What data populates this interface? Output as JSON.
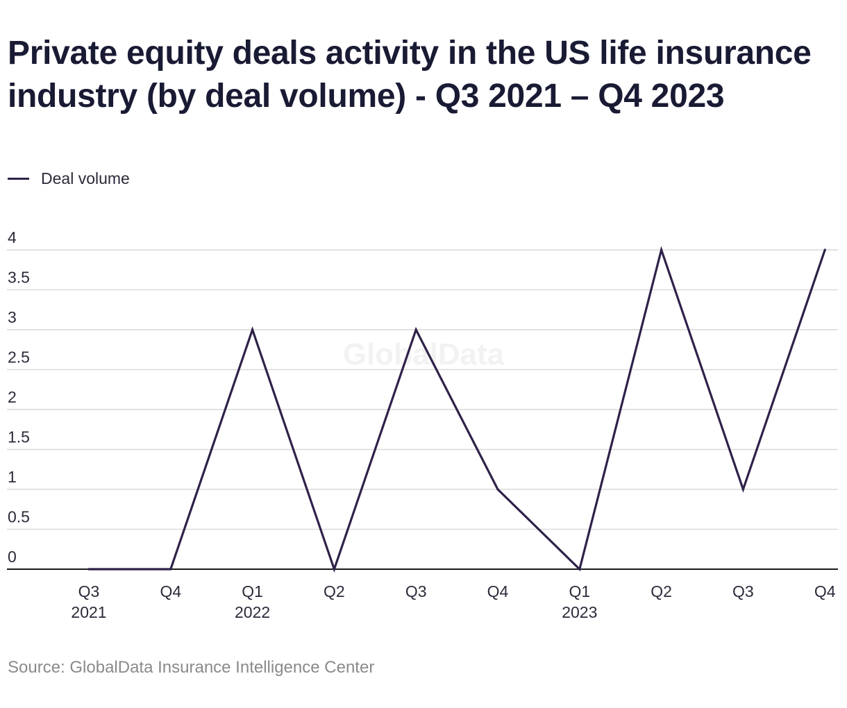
{
  "title": "Private equity deals activity in the US life insurance industry (by deal volume) - Q3 2021 – Q4 2023",
  "source": "Source: GlobalData Insurance Intelligence Center",
  "watermark": "GlobalData",
  "colors": {
    "line": "#2f2249",
    "grid": "#d9d9d9",
    "axis": "#1a1a1a",
    "tick_text": "#2a2a3a",
    "source_text": "#8a8a8a"
  },
  "chart_data": {
    "type": "line",
    "title": "Private equity deals activity in the US life insurance industry (by deal volume) - Q3 2021 – Q4 2023",
    "categories": [
      [
        "Q3",
        "2021"
      ],
      [
        "Q4",
        ""
      ],
      [
        "Q1",
        "2022"
      ],
      [
        "Q2",
        ""
      ],
      [
        "Q3",
        ""
      ],
      [
        "Q4",
        ""
      ],
      [
        "Q1",
        "2023"
      ],
      [
        "Q2",
        ""
      ],
      [
        "Q3",
        ""
      ],
      [
        "Q4",
        ""
      ]
    ],
    "series": [
      {
        "name": "Deal volume",
        "values": [
          0,
          0,
          3,
          0,
          3,
          1,
          0,
          4,
          1,
          4
        ]
      }
    ],
    "ylim": [
      0,
      4
    ],
    "yticks": [
      "0",
      "0.5",
      "1",
      "1.5",
      "2",
      "2.5",
      "3",
      "3.5",
      "4"
    ],
    "xlabel": "",
    "ylabel": "",
    "grid": true,
    "legend_position": "top-left"
  }
}
